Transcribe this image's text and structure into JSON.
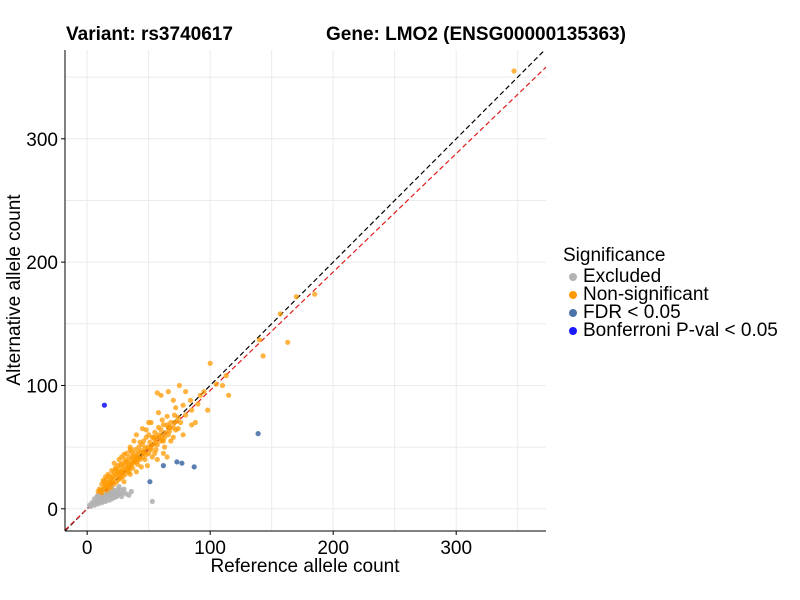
{
  "header": {
    "variant_title": "Variant: rs3740617",
    "gene_title": "Gene: LMO2 (ENSG00000135363)"
  },
  "legend": {
    "title": "Significance",
    "items": [
      {
        "label": "Excluded",
        "color": "#b3b3b3"
      },
      {
        "label": "Non-significant",
        "color": "#ff9900"
      },
      {
        "label": "FDR < 0.05",
        "color": "#4a72a8"
      },
      {
        "label": "Bonferroni P-val < 0.05",
        "color": "#1a1aff"
      }
    ]
  },
  "chart_data": {
    "type": "scatter",
    "xlabel": "Reference allele count",
    "ylabel": "Alternative allele count",
    "xlim": [
      -18,
      373
    ],
    "ylim": [
      -18,
      372
    ],
    "xticks": [
      0,
      100,
      200,
      300
    ],
    "yticks": [
      0,
      100,
      200,
      300
    ],
    "grid": true,
    "legend_position": "right",
    "reference_lines": [
      {
        "slope": 1.0,
        "intercept": 0,
        "style": "dashed",
        "color": "#000000"
      },
      {
        "slope": 0.96,
        "intercept": 0,
        "style": "dashed",
        "color": "#e01b1b"
      }
    ],
    "series": [
      {
        "name": "Excluded",
        "color": "#b3b3b3",
        "points": [
          [
            3,
            2
          ],
          [
            5,
            4
          ],
          [
            6,
            3
          ],
          [
            7,
            6
          ],
          [
            8,
            5
          ],
          [
            9,
            4
          ],
          [
            10,
            7
          ],
          [
            10,
            9
          ],
          [
            11,
            6
          ],
          [
            12,
            8
          ],
          [
            12,
            5
          ],
          [
            13,
            10
          ],
          [
            14,
            7
          ],
          [
            14,
            11
          ],
          [
            15,
            9
          ],
          [
            15,
            6
          ],
          [
            16,
            12
          ],
          [
            16,
            8
          ],
          [
            17,
            10
          ],
          [
            17,
            13
          ],
          [
            18,
            9
          ],
          [
            18,
            7
          ],
          [
            19,
            12
          ],
          [
            19,
            14
          ],
          [
            20,
            10
          ],
          [
            20,
            8
          ],
          [
            21,
            13
          ],
          [
            21,
            11
          ],
          [
            22,
            9
          ],
          [
            22,
            15
          ],
          [
            23,
            12
          ],
          [
            24,
            10
          ],
          [
            24,
            14
          ],
          [
            25,
            11
          ],
          [
            25,
            16
          ],
          [
            26,
            13
          ],
          [
            27,
            12
          ],
          [
            28,
            10
          ],
          [
            28,
            15
          ],
          [
            30,
            13
          ],
          [
            32,
            12
          ],
          [
            34,
            11
          ],
          [
            36,
            14
          ],
          [
            8,
            10
          ],
          [
            10,
            12
          ],
          [
            12,
            15
          ],
          [
            6,
            8
          ],
          [
            9,
            11
          ],
          [
            4,
            5
          ],
          [
            2,
            3
          ],
          [
            20,
            17
          ],
          [
            26,
            18
          ],
          [
            30,
            16
          ],
          [
            53,
            6
          ]
        ]
      },
      {
        "name": "Non-significant",
        "color": "#ff9900",
        "points": [
          [
            347,
            355
          ],
          [
            170,
            172
          ],
          [
            185,
            174
          ],
          [
            157,
            158
          ],
          [
            163,
            135
          ],
          [
            143,
            124
          ],
          [
            140,
            137
          ],
          [
            113,
            108
          ],
          [
            100,
            118
          ],
          [
            105,
            101
          ],
          [
            115,
            92
          ],
          [
            110,
            100
          ],
          [
            95,
            95
          ],
          [
            90,
            85
          ],
          [
            80,
            95
          ],
          [
            98,
            80
          ],
          [
            75,
            100
          ],
          [
            88,
            70
          ],
          [
            60,
            92
          ],
          [
            70,
            88
          ],
          [
            85,
            68
          ],
          [
            65,
            75
          ],
          [
            78,
            60
          ],
          [
            72,
            82
          ],
          [
            68,
            55
          ],
          [
            62,
            68
          ],
          [
            58,
            78
          ],
          [
            55,
            62
          ],
          [
            52,
            70
          ],
          [
            50,
            45
          ],
          [
            48,
            58
          ],
          [
            45,
            52
          ],
          [
            42,
            50
          ],
          [
            40,
            42
          ],
          [
            38,
            55
          ],
          [
            36,
            40
          ],
          [
            35,
            48
          ],
          [
            33,
            38
          ],
          [
            32,
            45
          ],
          [
            30,
            35
          ],
          [
            28,
            42
          ],
          [
            27,
            30
          ],
          [
            25,
            35
          ],
          [
            24,
            28
          ],
          [
            22,
            30
          ],
          [
            20,
            25
          ],
          [
            18,
            22
          ],
          [
            16,
            24
          ],
          [
            15,
            20
          ],
          [
            14,
            18
          ],
          [
            12,
            20
          ],
          [
            10,
            16
          ],
          [
            9,
            14
          ],
          [
            60,
            55
          ],
          [
            63,
            50
          ],
          [
            66,
            60
          ],
          [
            70,
            58
          ],
          [
            74,
            65
          ],
          [
            56,
            48
          ],
          [
            57,
            40
          ],
          [
            54,
            52
          ],
          [
            50,
            60
          ],
          [
            47,
            40
          ],
          [
            44,
            47
          ],
          [
            41,
            36
          ],
          [
            39,
            48
          ],
          [
            37,
            33
          ],
          [
            34,
            42
          ],
          [
            31,
            28
          ],
          [
            29,
            37
          ],
          [
            26,
            24
          ],
          [
            23,
            33
          ],
          [
            21,
            27
          ],
          [
            19,
            17
          ],
          [
            17,
            28
          ],
          [
            13,
            23
          ],
          [
            11,
            15
          ],
          [
            65,
            42
          ],
          [
            62,
            45
          ],
          [
            59,
            58
          ],
          [
            53,
            42
          ],
          [
            49,
            35
          ],
          [
            46,
            55
          ],
          [
            43,
            40
          ],
          [
            40,
            30
          ],
          [
            38,
            38
          ],
          [
            36,
            46
          ],
          [
            35,
            28
          ],
          [
            33,
            31
          ],
          [
            31,
            40
          ],
          [
            29,
            26
          ],
          [
            28,
            33
          ],
          [
            26,
            40
          ],
          [
            24,
            22
          ],
          [
            22,
            37
          ],
          [
            20,
            31
          ],
          [
            19,
            21
          ],
          [
            17,
            19
          ],
          [
            15,
            26
          ],
          [
            13,
            16
          ],
          [
            80,
            76
          ],
          [
            76,
            70
          ],
          [
            72,
            64
          ],
          [
            68,
            70
          ],
          [
            64,
            62
          ],
          [
            61,
            72
          ],
          [
            58,
            66
          ],
          [
            55,
            56
          ],
          [
            52,
            48
          ],
          [
            49,
            50
          ],
          [
            46,
            46
          ],
          [
            43,
            54
          ],
          [
            41,
            44
          ],
          [
            39,
            40
          ],
          [
            37,
            42
          ],
          [
            34,
            35
          ],
          [
            32,
            32
          ],
          [
            30,
            44
          ],
          [
            28,
            28
          ],
          [
            27,
            36
          ],
          [
            25,
            30
          ],
          [
            23,
            26
          ],
          [
            21,
            23
          ],
          [
            18,
            26
          ],
          [
            16,
            18
          ],
          [
            14,
            22
          ],
          [
            12,
            13
          ],
          [
            84,
            88
          ],
          [
            78,
            84
          ],
          [
            74,
            74
          ],
          [
            71,
            76
          ],
          [
            67,
            66
          ],
          [
            63,
            58
          ],
          [
            60,
            64
          ],
          [
            57,
            52
          ],
          [
            54,
            58
          ],
          [
            51,
            54
          ],
          [
            48,
            44
          ],
          [
            45,
            42
          ],
          [
            42,
            46
          ],
          [
            40,
            38
          ],
          [
            38,
            44
          ],
          [
            36,
            36
          ],
          [
            34,
            30
          ],
          [
            32,
            38
          ],
          [
            30,
            31
          ],
          [
            28,
            30
          ],
          [
            26,
            28
          ],
          [
            24,
            32
          ],
          [
            22,
            20
          ],
          [
            20,
            22
          ],
          [
            18,
            20
          ],
          [
            16,
            15
          ],
          [
            57,
            94
          ],
          [
            66,
            95
          ],
          [
            85,
            80
          ],
          [
            92,
            92
          ],
          [
            45,
            65
          ],
          [
            40,
            60
          ],
          [
            50,
            70
          ],
          [
            35,
            50
          ],
          [
            44,
            34
          ],
          [
            55,
            45
          ],
          [
            62,
            55
          ],
          [
            70,
            66
          ],
          [
            48,
            64
          ],
          [
            53,
            58
          ],
          [
            58,
            60
          ],
          [
            65,
            68
          ],
          [
            30,
            22
          ],
          [
            35,
            33
          ],
          [
            42,
            41
          ],
          [
            47,
            49
          ],
          [
            52,
            51
          ],
          [
            56,
            54
          ],
          [
            61,
            60
          ],
          [
            67,
            63
          ],
          [
            73,
            71
          ],
          [
            27,
            25
          ],
          [
            33,
            34
          ],
          [
            37,
            37
          ],
          [
            41,
            41
          ],
          [
            46,
            45
          ],
          [
            51,
            49
          ],
          [
            56,
            58
          ],
          [
            61,
            56
          ],
          [
            66,
            66
          ],
          [
            71,
            70
          ]
        ]
      },
      {
        "name": "FDR < 0.05",
        "color": "#4a72a8",
        "points": [
          [
            139,
            61
          ],
          [
            87,
            34
          ],
          [
            77,
            37
          ],
          [
            73,
            38
          ],
          [
            51,
            22
          ],
          [
            62,
            35
          ]
        ]
      },
      {
        "name": "Bonferroni P-val < 0.05",
        "color": "#1a1aff",
        "points": [
          [
            14,
            84
          ]
        ]
      }
    ]
  }
}
